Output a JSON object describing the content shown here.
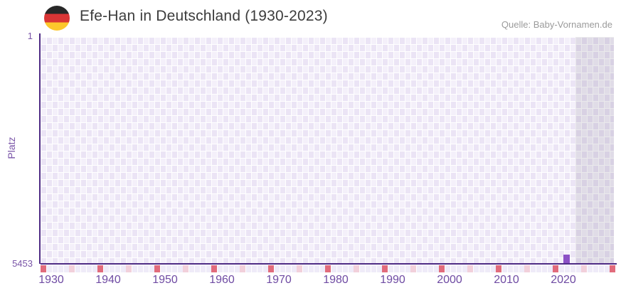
{
  "header": {
    "flag_icon": "germany-flag",
    "title": "Efe-Han in Deutschland (1930-2023)",
    "source": "Quelle: Baby-Vornamen.de"
  },
  "chart_data": {
    "type": "bar",
    "title": "Efe-Han in Deutschland (1930-2023)",
    "ylabel": "Platz",
    "y_top_label": "1",
    "y_bottom_label": "5453",
    "ylim": [
      1,
      5453
    ],
    "y_inverted": true,
    "x_start_year": 1930,
    "x_end_year": 2023,
    "x_grid_end_year": 2031,
    "x_tick_labels": [
      "1930",
      "1940",
      "1950",
      "1960",
      "1970",
      "1980",
      "1990",
      "2000",
      "2010",
      "2020"
    ],
    "decade_marker_years": [
      1930,
      1940,
      1950,
      1960,
      1970,
      1980,
      1990,
      2000,
      2010,
      2020,
      2030
    ],
    "mid_decade_marker_years": [
      1935,
      1945,
      1955,
      1965,
      1975,
      1985,
      1995,
      2005,
      2015,
      2025
    ],
    "points": [
      {
        "year": 2022,
        "rank": 5250
      }
    ],
    "future_shade_start_year": 2024,
    "legend": false,
    "grid": "checkered",
    "colors": {
      "bar": "#8c51c6",
      "axis": "#4e2b85",
      "tick_text": "#6f4ba3",
      "y_label_text": "#7a55a8",
      "decade_marker": "#e16b7c",
      "mid_decade_marker": "#f2d0db",
      "cell_light": "#f4f0fa",
      "cell_dark": "#ebe4f5",
      "future_shade": "rgba(106,98,122,0.14)",
      "title_text": "#3c3c3c",
      "source_text": "#9b9b9b"
    }
  }
}
